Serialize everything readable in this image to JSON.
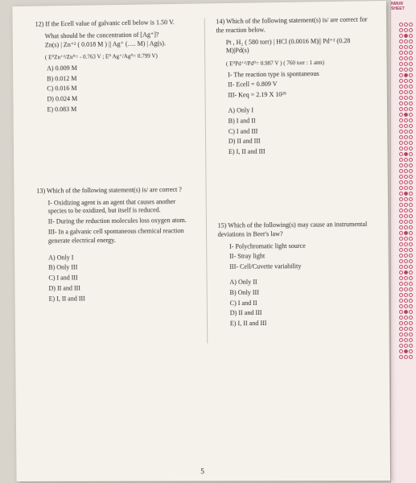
{
  "scantron": {
    "header": "NMUR SHEET"
  },
  "q12": {
    "num": "12)",
    "line1": "If the Ecell value of galvanic cell below is 1.50 V.",
    "line2": "What should be the concentration of [Ag⁺]?",
    "eq": "Zn(s) | Zn⁺² ( 0.018 M ) || Ag⁺ (…. M) | Ag(s).",
    "pot": "( E⁰Zn⁺²/Zn⁰= - 0.763 V ;  E⁰ Ag⁺/Ag⁰= 0.799 V)",
    "A": "A) 0.009 M",
    "B": "B) 0.012 M",
    "C": "C) 0.016 M",
    "D": "D) 0.024 M",
    "E": "E) 0.083 M"
  },
  "q13": {
    "num": "13)",
    "stem": "Which of the following statement(s) is/ are correct ?",
    "I": "I-   Oxidizing agent is an agent that causes another species to be oxidized, but itself is reduced.",
    "II": "II-  During the reduction molecules loss oxygen atom.",
    "III": "III- In a galvanic cell spontaneous chemical reaction generate electrical energy.",
    "A": "A) Only I",
    "B": "B) Only III",
    "C": "C) I and III",
    "D": "D) II and III",
    "E": "E) I, II and III"
  },
  "q14": {
    "num": "14)",
    "stem": "Which of the following statement(s) is/ are correct for the reaction below.",
    "eq": "Pt , H₂ ( 580 torr) | HCl (0.0016 M)|| Pd⁺² (0.28 M)|Pd(s)",
    "pot": "( E⁰Pd⁺²/Pd⁰=  0.987 V )  ( 760 torr : 1 atm)",
    "I": "I-      The reaction type is spontaneous",
    "II": "II-    Ecell = 0.809 V",
    "III": "III-   Keq = 2.19 X 10²⁹",
    "A": "A)  Only I",
    "B": "B)  I and II",
    "C": "C)  I and III",
    "D": "D)  II and III",
    "E": "E)  I, II and III"
  },
  "q15": {
    "num": "15)",
    "stem": "Which of the following(s) may cause an instrumental deviations  in Beer's law?",
    "I": "I-     Polychromatic light source",
    "II": "II-    Stray light",
    "III": "III-   Cell/Cuvette variability",
    "A": "A)  Only II",
    "B": "B)  Only III",
    "C": "C)  I and II",
    "D": "D)  II and III",
    "E": "E)  I, II and III"
  },
  "pagenum": "5"
}
